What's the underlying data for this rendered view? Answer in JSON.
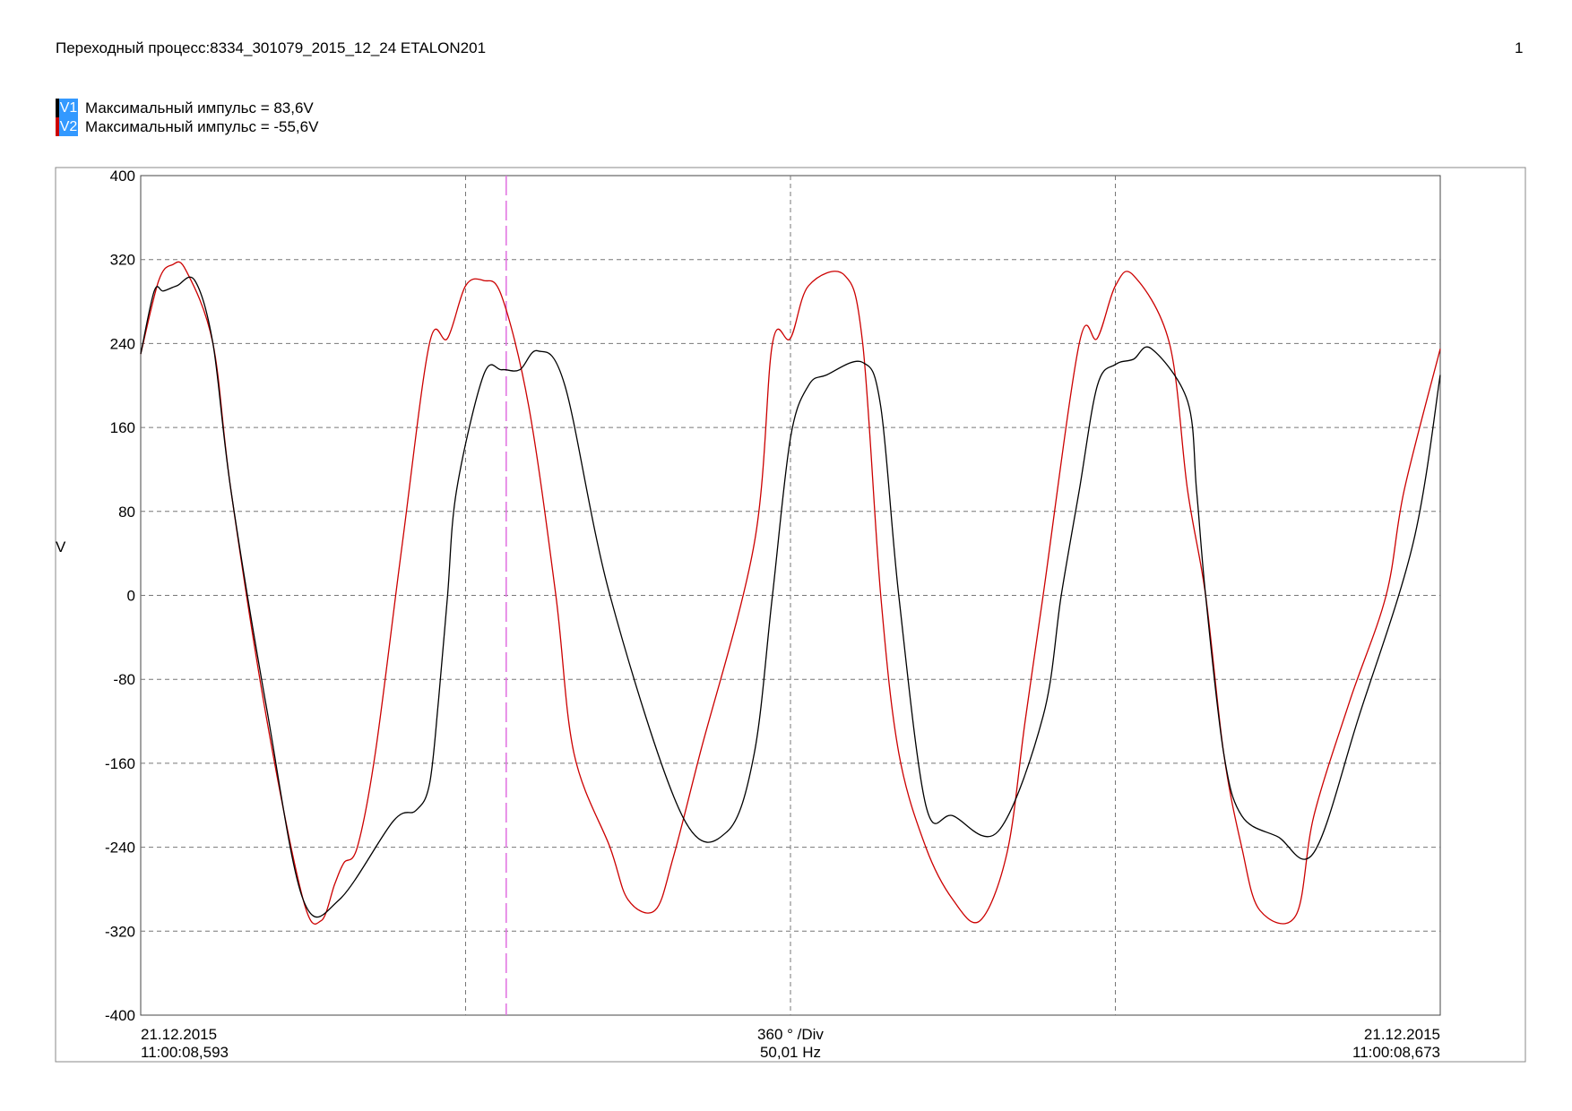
{
  "header": {
    "title": "Переходный процесс:8334_301079_2015_12_24 ETALON201",
    "page_number": "1"
  },
  "legend": [
    {
      "tag": "V1",
      "text": "Максимальный импульс = 83,6V",
      "color": "#000000"
    },
    {
      "tag": "V2",
      "text": "Максимальный импульс = -55,6V",
      "color": "#cc0000"
    }
  ],
  "colors": {
    "v1": "#000000",
    "v2": "#cc0000",
    "grid": "#777777",
    "cursor": "#e070e0",
    "tag_bg": "#3399ff"
  },
  "footer": {
    "start_date": "21.12.2015",
    "start_time": "11:00:08,593",
    "end_date": "21.12.2015",
    "end_time": "11:00:08,673",
    "div_label": "360 ° /Div",
    "frequency": "50,01 Hz"
  },
  "chart_data": {
    "type": "line",
    "ylabel": "V",
    "ylim": [
      -400,
      400
    ],
    "yticks": [
      "400",
      "320",
      "240",
      "160",
      "80",
      "0",
      "-80",
      "-160",
      "-240",
      "-320",
      "-400"
    ],
    "x_unit": "degrees",
    "xlim": [
      0,
      1440
    ],
    "x_gridlines": [
      360,
      720,
      1080
    ],
    "cursor_x": 405,
    "grid": true,
    "series": [
      {
        "name": "V1",
        "x": [
          0,
          15,
          25,
          40,
          60,
          80,
          100,
          140,
          180,
          220,
          280,
          305,
          320,
          330,
          340,
          350,
          380,
          400,
          420,
          440,
          470,
          520,
          600,
          650,
          680,
          700,
          720,
          740,
          760,
          800,
          820,
          840,
          870,
          900,
          950,
          1000,
          1020,
          1040,
          1060,
          1080,
          1100,
          1120,
          1160,
          1170,
          1180,
          1200,
          1220,
          1260,
          1300,
          1350,
          1410,
          1440
        ],
        "y": [
          230,
          290,
          290,
          295,
          300,
          240,
          100,
          -110,
          -290,
          -290,
          -215,
          -205,
          -180,
          -100,
          0,
          100,
          210,
          215,
          215,
          233,
          200,
          0,
          -210,
          -225,
          -150,
          0,
          150,
          200,
          210,
          222,
          180,
          0,
          -200,
          -210,
          -225,
          -115,
          0,
          100,
          200,
          220,
          225,
          235,
          185,
          100,
          0,
          -150,
          -210,
          -230,
          -245,
          -115,
          50,
          210
        ]
      },
      {
        "name": "V2",
        "x": [
          0,
          20,
          35,
          50,
          80,
          100,
          140,
          180,
          200,
          215,
          225,
          240,
          260,
          290,
          320,
          340,
          360,
          380,
          400,
          430,
          460,
          480,
          520,
          540,
          570,
          590,
          620,
          680,
          700,
          720,
          740,
          780,
          800,
          820,
          840,
          870,
          900,
          930,
          960,
          980,
          1000,
          1040,
          1060,
          1080,
          1100,
          1140,
          1160,
          1180,
          1200,
          1220,
          1240,
          1280,
          1300,
          1340,
          1380,
          1400,
          1440
        ],
        "y": [
          230,
          300,
          315,
          310,
          240,
          100,
          -120,
          -290,
          -310,
          -275,
          -255,
          -240,
          -150,
          50,
          240,
          245,
          295,
          300,
          285,
          180,
          0,
          -150,
          -240,
          -290,
          -300,
          -250,
          -150,
          50,
          240,
          245,
          295,
          305,
          240,
          0,
          -150,
          -240,
          -290,
          -310,
          -245,
          -120,
          0,
          240,
          245,
          295,
          305,
          240,
          100,
          0,
          -150,
          -240,
          -300,
          -305,
          -210,
          -100,
          0,
          100,
          235
        ]
      }
    ]
  }
}
